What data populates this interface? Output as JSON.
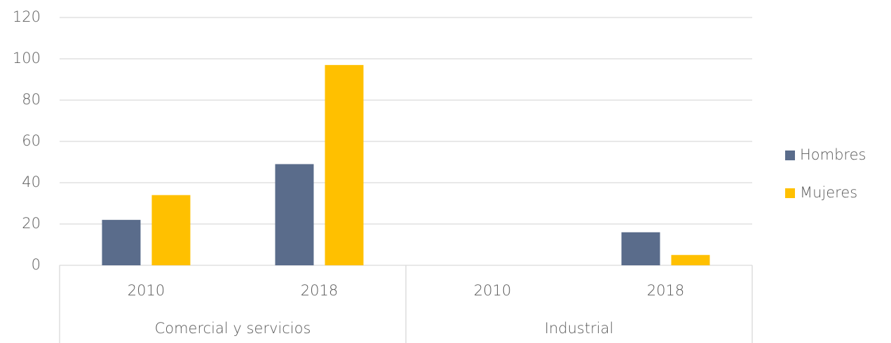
{
  "chart_data": {
    "type": "bar",
    "categories": [
      "2010",
      "2018",
      "2010",
      "2018"
    ],
    "groups": [
      "Comercial y servicios",
      "Industrial"
    ],
    "series": [
      {
        "name": "Hombres",
        "color": "#5a6c8b",
        "values": [
          22,
          49,
          0,
          16
        ]
      },
      {
        "name": "Mujeres",
        "color": "#ffc000",
        "values": [
          34,
          97,
          0,
          5
        ]
      }
    ],
    "ylim": [
      0,
      120
    ],
    "yticks": [
      0,
      20,
      40,
      60,
      80,
      100,
      120
    ],
    "grid": true,
    "legend": "right"
  }
}
